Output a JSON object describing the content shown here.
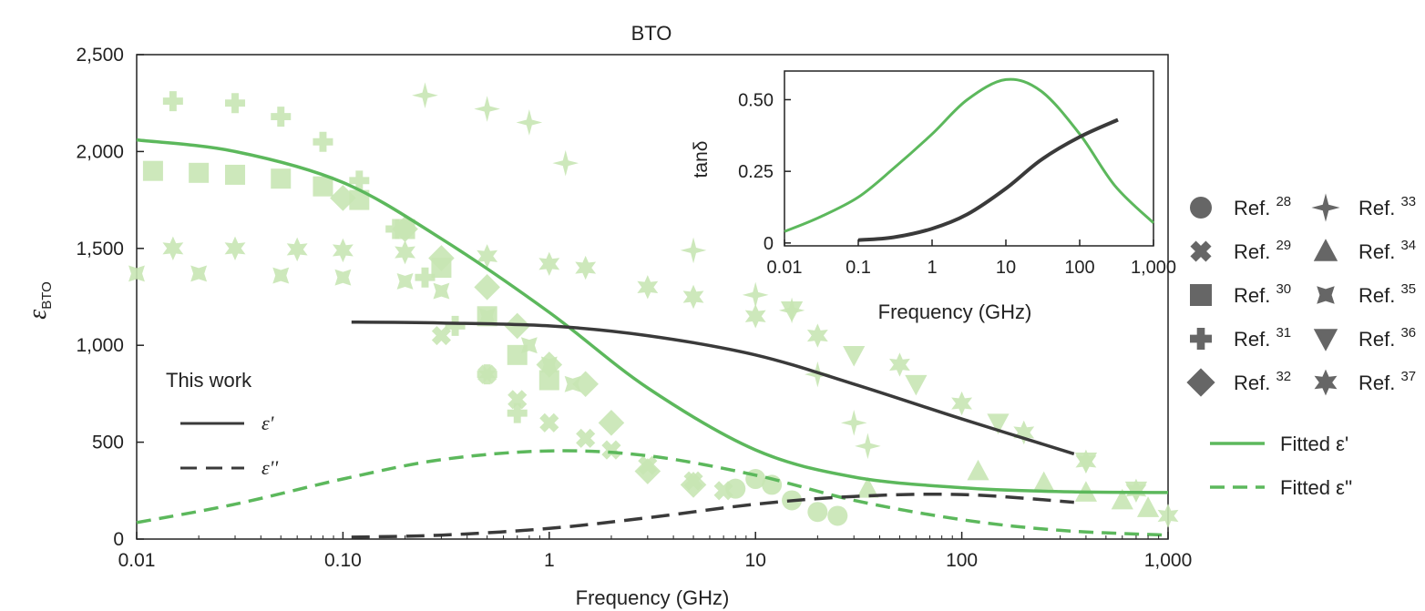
{
  "chart_data": [
    {
      "type": "scatter",
      "title": "BTO",
      "xlabel": "Frequency (GHz)",
      "ylabel_symbol": "ε",
      "ylabel_sub": "BTO",
      "xscale": "log",
      "xlim": [
        0.01,
        1000
      ],
      "ylim": [
        0,
        2500
      ],
      "x_ticks": [
        0.01,
        0.1,
        1,
        10,
        100,
        1000
      ],
      "x_tick_labels": [
        "0.01",
        "0.10",
        "1",
        "10",
        "100",
        "1,000"
      ],
      "y_ticks": [
        0,
        500,
        1000,
        1500,
        2000,
        2500
      ],
      "y_tick_labels": [
        "0",
        "500",
        "1,000",
        "1,500",
        "2,000",
        "2,500"
      ],
      "colors": {
        "fit": "#5cb85c",
        "work": "#3a3a3a",
        "ref": "#c8e6b4"
      },
      "this_work": {
        "label": "This work",
        "eps_real": {
          "label": "ε'",
          "x": [
            0.11,
            0.3,
            1,
            3,
            10,
            30,
            100,
            350
          ],
          "y": [
            1120,
            1115,
            1100,
            1050,
            950,
            800,
            620,
            440
          ]
        },
        "eps_imag": {
          "label": "ε''",
          "x": [
            0.11,
            0.3,
            1,
            3,
            10,
            30,
            100,
            350
          ],
          "y": [
            10,
            20,
            55,
            110,
            180,
            220,
            230,
            190
          ]
        }
      },
      "fitted": {
        "eps_real": {
          "label": "Fitted ε'",
          "x": [
            0.01,
            0.03,
            0.1,
            0.3,
            1,
            3,
            10,
            30,
            100,
            300,
            1000
          ],
          "y": [
            2060,
            2000,
            1840,
            1550,
            1170,
            780,
            460,
            320,
            265,
            245,
            240
          ]
        },
        "eps_imag": {
          "label": "Fitted ε''",
          "x": [
            0.01,
            0.03,
            0.1,
            0.3,
            1,
            3,
            10,
            30,
            100,
            300,
            1000
          ],
          "y": [
            85,
            180,
            310,
            410,
            455,
            430,
            330,
            200,
            100,
            45,
            20
          ]
        }
      },
      "references": [
        {
          "ref": "28",
          "marker": "circle",
          "x": [
            8,
            10,
            12,
            15,
            20,
            25
          ],
          "y": [
            260,
            310,
            280,
            200,
            140,
            120
          ]
        },
        {
          "ref": "29",
          "marker": "x",
          "x": [
            0.3,
            0.5,
            0.7,
            1,
            1.5,
            2,
            3,
            5,
            7
          ],
          "y": [
            1050,
            850,
            720,
            600,
            520,
            460,
            380,
            300,
            250
          ]
        },
        {
          "ref": "30",
          "marker": "square",
          "x": [
            0.012,
            0.02,
            0.03,
            0.05,
            0.08,
            0.12,
            0.2,
            0.3,
            0.5,
            0.7,
            1
          ],
          "y": [
            1900,
            1890,
            1880,
            1860,
            1820,
            1750,
            1600,
            1400,
            1150,
            950,
            820
          ]
        },
        {
          "ref": "31",
          "marker": "plus",
          "x": [
            0.015,
            0.03,
            0.05,
            0.08,
            0.12,
            0.18,
            0.25,
            0.35,
            0.5,
            0.7
          ],
          "y": [
            2260,
            2250,
            2180,
            2050,
            1850,
            1600,
            1350,
            1100,
            850,
            650
          ]
        },
        {
          "ref": "32",
          "marker": "diamond",
          "x": [
            0.1,
            0.2,
            0.3,
            0.5,
            0.7,
            1,
            1.5,
            2,
            3,
            5
          ],
          "y": [
            1760,
            1600,
            1450,
            1300,
            1100,
            900,
            800,
            600,
            350,
            280
          ]
        },
        {
          "ref": "33",
          "marker": "star4",
          "x": [
            0.25,
            0.5,
            0.8,
            1.2,
            5,
            10,
            15,
            20,
            30,
            35
          ],
          "y": [
            2290,
            2220,
            2150,
            1940,
            1490,
            1260,
            1180,
            850,
            600,
            480
          ]
        },
        {
          "ref": "34",
          "marker": "triangle",
          "x": [
            35,
            120,
            250,
            400,
            600,
            800
          ],
          "y": [
            260,
            350,
            290,
            240,
            200,
            160
          ]
        },
        {
          "ref": "35",
          "marker": "star4concave",
          "x": [
            0.01,
            0.02,
            0.05,
            0.1,
            0.2,
            0.3,
            0.5,
            0.8,
            1,
            1.3
          ],
          "y": [
            1370,
            1370,
            1360,
            1350,
            1330,
            1280,
            1150,
            1000,
            900,
            800
          ]
        },
        {
          "ref": "36",
          "marker": "triangle-down",
          "x": [
            15,
            30,
            60,
            150,
            400,
            700
          ],
          "y": [
            1180,
            950,
            800,
            600,
            400,
            250
          ]
        },
        {
          "ref": "37",
          "marker": "star",
          "x": [
            0.015,
            0.03,
            0.06,
            0.1,
            0.2,
            0.5,
            1,
            1.5,
            3,
            5,
            10,
            20,
            50,
            100,
            200,
            400,
            700,
            1000
          ],
          "y": [
            1500,
            1500,
            1495,
            1490,
            1480,
            1460,
            1420,
            1400,
            1300,
            1250,
            1150,
            1050,
            900,
            700,
            550,
            400,
            250,
            120
          ]
        }
      ],
      "legend": {
        "placement": "right",
        "refs": [
          {
            "marker": "circle",
            "label": "Ref.",
            "sup": "28"
          },
          {
            "marker": "x",
            "label": "Ref.",
            "sup": "29"
          },
          {
            "marker": "square",
            "label": "Ref.",
            "sup": "30"
          },
          {
            "marker": "plus",
            "label": "Ref.",
            "sup": "31"
          },
          {
            "marker": "diamond",
            "label": "Ref.",
            "sup": "32"
          },
          {
            "marker": "star4",
            "label": "Ref.",
            "sup": "33"
          },
          {
            "marker": "triangle",
            "label": "Ref.",
            "sup": "34"
          },
          {
            "marker": "star4concave",
            "label": "Ref.",
            "sup": "35"
          },
          {
            "marker": "triangle-down",
            "label": "Ref.",
            "sup": "36"
          },
          {
            "marker": "star",
            "label": "Ref.",
            "sup": "37"
          }
        ],
        "fits": [
          {
            "style": "solid",
            "label": "Fitted ε'"
          },
          {
            "style": "dashed",
            "label": "Fitted ε''"
          }
        ]
      }
    },
    {
      "type": "line",
      "title": "",
      "xlabel": "Frequency (GHz)",
      "ylabel": "tanδ",
      "xscale": "log",
      "xlim": [
        0.01,
        1000
      ],
      "ylim": [
        -0.01,
        0.6
      ],
      "x_ticks": [
        0.01,
        0.1,
        1,
        10,
        100,
        1000
      ],
      "x_tick_labels": [
        "0.01",
        "0.1",
        "1",
        "10",
        "100",
        "1,000"
      ],
      "y_ticks": [
        0,
        0.25,
        0.5
      ],
      "y_tick_labels": [
        "0",
        "0.25",
        "0.50"
      ],
      "series": [
        {
          "color": "#5cb85c",
          "x": [
            0.01,
            0.03,
            0.1,
            0.3,
            1,
            3,
            10,
            30,
            100,
            300,
            1000
          ],
          "y": [
            0.04,
            0.09,
            0.16,
            0.26,
            0.38,
            0.5,
            0.57,
            0.53,
            0.38,
            0.2,
            0.07
          ]
        },
        {
          "color": "#3a3a3a",
          "x": [
            0.1,
            0.3,
            1,
            3,
            10,
            30,
            100,
            330
          ],
          "y": [
            0.01,
            0.02,
            0.05,
            0.1,
            0.19,
            0.29,
            0.37,
            0.43
          ]
        }
      ]
    }
  ]
}
